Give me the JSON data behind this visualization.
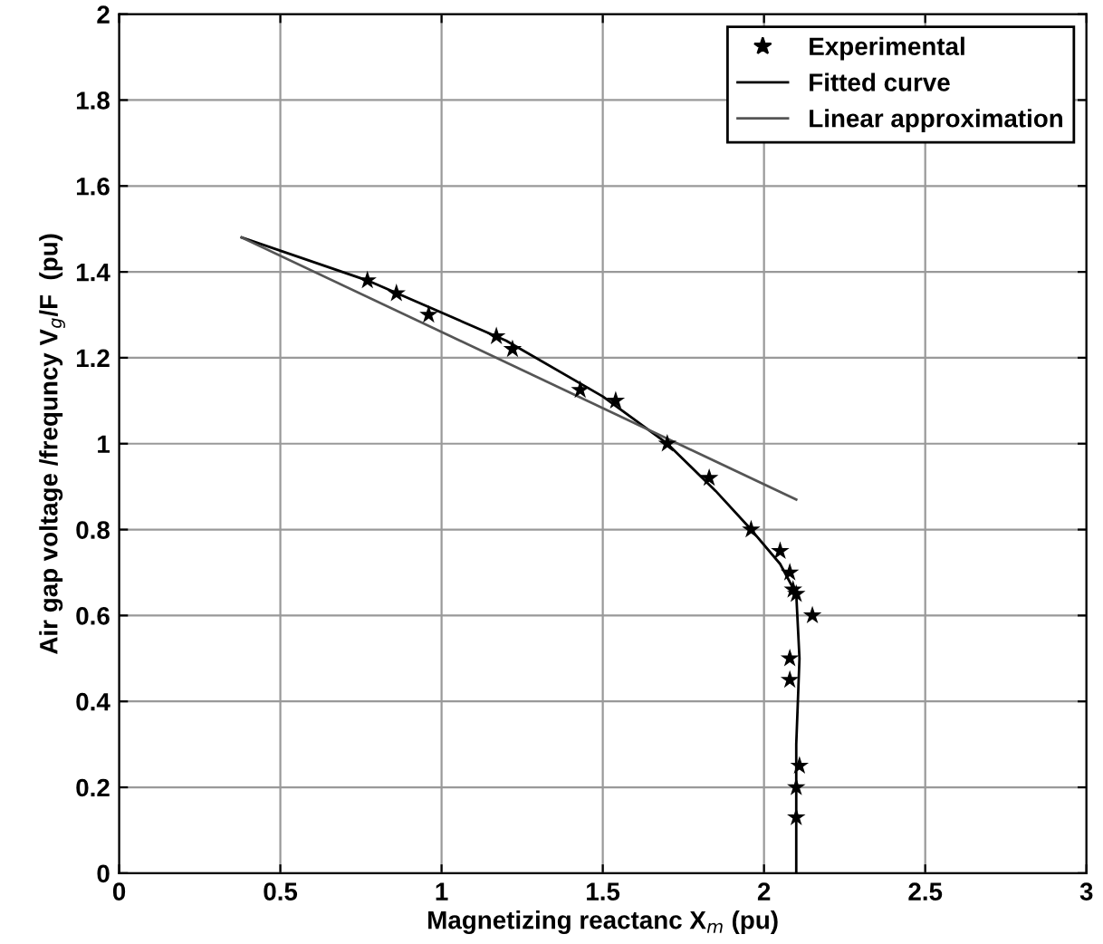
{
  "chart_data": {
    "type": "line",
    "xlabel": "Magnetizing reactanc X$_{m}$ (pu)",
    "ylabel": "Air gap voltage /frequncy V$_{g}$/F  (pu)",
    "series": [
      {
        "name": "Experimental",
        "type": "scatter",
        "marker": "star",
        "color": "#000000",
        "x": [
          0.77,
          0.86,
          0.96,
          1.17,
          1.22,
          1.43,
          1.54,
          1.7,
          1.83,
          1.96,
          2.05,
          2.08,
          2.09,
          2.1,
          2.15,
          2.08,
          2.08,
          2.11,
          2.1,
          2.1
        ],
        "values": [
          1.38,
          1.35,
          1.3,
          1.25,
          1.22,
          1.125,
          1.1,
          1.0,
          0.92,
          0.8,
          0.75,
          0.7,
          0.66,
          0.65,
          0.6,
          0.5,
          0.45,
          0.25,
          0.2,
          0.13
        ]
      },
      {
        "name": "Fitted curve",
        "color": "#000000",
        "x": [
          0.38,
          0.77,
          1.2,
          1.5,
          1.7,
          1.85,
          1.96,
          2.05,
          2.1,
          2.11,
          2.1,
          2.1
        ],
        "values": [
          1.48,
          1.38,
          1.24,
          1.11,
          1.0,
          0.89,
          0.8,
          0.72,
          0.65,
          0.5,
          0.3,
          0.0
        ]
      },
      {
        "name": "Linear approximation",
        "color": "#555555",
        "x": [
          0.38,
          2.1
        ],
        "values": [
          1.48,
          0.87
        ]
      }
    ],
    "xlim": [
      0,
      3
    ],
    "xticks": [
      0,
      0.5,
      1,
      1.5,
      2,
      2.5,
      3
    ],
    "ylim": [
      0,
      2
    ],
    "yticks": [
      0,
      0.2,
      0.4,
      0.6,
      0.8,
      1,
      1.2,
      1.4,
      1.6,
      1.8,
      2
    ],
    "grid": true,
    "legend": "top right"
  }
}
